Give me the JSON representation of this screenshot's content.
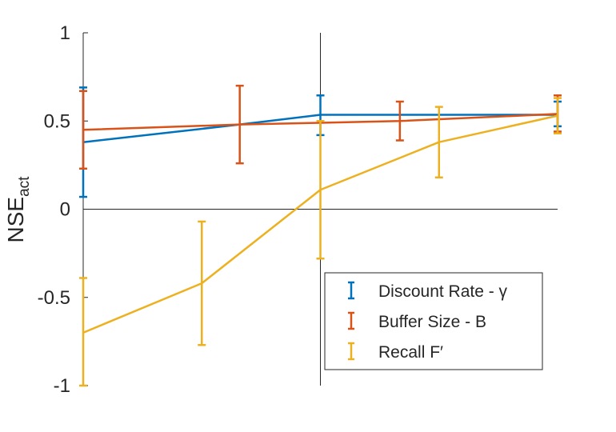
{
  "chart_data": {
    "type": "line",
    "error_bars": true,
    "title": "",
    "xlabel": "",
    "ylabel_base": "NSE",
    "ylabel_sub": "act",
    "x": [
      0,
      1,
      2,
      3,
      4
    ],
    "xlim": [
      0,
      4
    ],
    "ylim": [
      -1,
      1
    ],
    "yticks": [
      -1,
      -0.5,
      0,
      0.5,
      1
    ],
    "ytick_labels": [
      "-1",
      "-0.5",
      "0",
      "0.5",
      "1"
    ],
    "grid": false,
    "reference_lines": {
      "horizontal_y": 0,
      "vertical_x": 2
    },
    "legend_position": "lower-right",
    "series": [
      {
        "name": "Discount Rate - γ",
        "color": "#0072BD",
        "points": [
          {
            "x": 0,
            "y": 0.38,
            "lo": 0.07,
            "hi": 0.69
          },
          {
            "x": 1.32,
            "y": 0.48
          },
          {
            "x": 2,
            "y": 0.535,
            "lo": 0.42,
            "hi": 0.645
          },
          {
            "x": 4,
            "y": 0.535,
            "lo": 0.47,
            "hi": 0.61
          }
        ]
      },
      {
        "name": "Buffer Size - B",
        "color": "#D95319",
        "points": [
          {
            "x": 0,
            "y": 0.45,
            "lo": 0.23,
            "hi": 0.67
          },
          {
            "x": 1.32,
            "y": 0.48,
            "lo": 0.26,
            "hi": 0.7
          },
          {
            "x": 2,
            "y": 0.49
          },
          {
            "x": 2.67,
            "y": 0.5,
            "lo": 0.39,
            "hi": 0.61
          },
          {
            "x": 4,
            "y": 0.54,
            "lo": 0.44,
            "hi": 0.645
          }
        ]
      },
      {
        "name": "Recall F′",
        "color": "#EDB120",
        "points": [
          {
            "x": 0,
            "y": -0.7,
            "lo": -1.0,
            "hi": -0.39
          },
          {
            "x": 1.0,
            "y": -0.42,
            "lo": -0.77,
            "hi": -0.07
          },
          {
            "x": 2,
            "y": 0.11,
            "lo": -0.28,
            "hi": 0.5
          },
          {
            "x": 3.0,
            "y": 0.38,
            "lo": 0.18,
            "hi": 0.58
          },
          {
            "x": 4,
            "y": 0.53,
            "lo": 0.43,
            "hi": 0.63
          }
        ]
      }
    ]
  }
}
